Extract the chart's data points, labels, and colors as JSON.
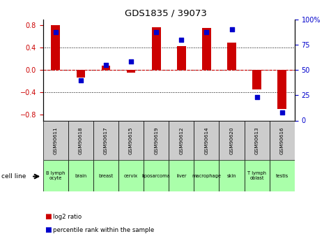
{
  "title": "GDS1835 / 39073",
  "samples": [
    "GSM90611",
    "GSM90618",
    "GSM90617",
    "GSM90615",
    "GSM90619",
    "GSM90612",
    "GSM90614",
    "GSM90620",
    "GSM90613",
    "GSM90616"
  ],
  "cell_lines": [
    "B lymph\nocyte",
    "brain",
    "breast",
    "cervix",
    "liposarcoma",
    "liver",
    "macrophage",
    "skin",
    "T lymph\noblast",
    "testis"
  ],
  "cell_line_colors": [
    "#ccffcc",
    "#ccffcc",
    "#ccffcc",
    "#ccffcc",
    "#ccffcc",
    "#ccffcc",
    "#ccffcc",
    "#ccffcc",
    "#ccffcc",
    "#ccffcc"
  ],
  "log2_ratio": [
    0.8,
    -0.13,
    0.07,
    -0.05,
    0.76,
    0.42,
    0.75,
    0.48,
    -0.35,
    -0.7
  ],
  "percentile_rank": [
    87,
    40,
    55,
    58,
    87,
    80,
    87,
    90,
    23,
    8
  ],
  "ylim": [
    -0.9,
    0.9
  ],
  "y2lim": [
    0,
    100
  ],
  "bar_color": "#cc0000",
  "dot_color": "#0000cc",
  "bg_color": "#ffffff",
  "legend_dot_label": "percentile rank within the sample",
  "legend_bar_label": "log2 ratio",
  "ylabel_color": "#cc0000",
  "y2label_color": "#0000cc",
  "sample_box_color": "#cccccc",
  "green_color": "#aaffaa"
}
